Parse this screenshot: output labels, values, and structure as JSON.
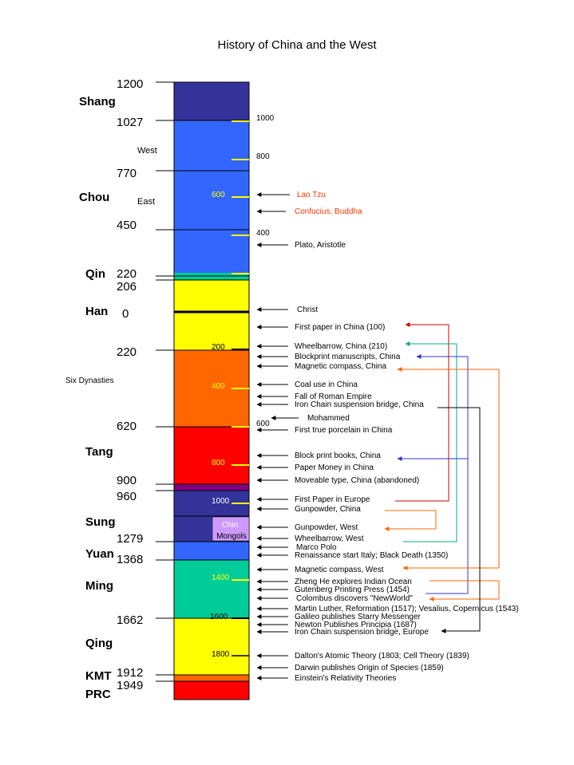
{
  "title": "History of China and the West",
  "dynasties": [
    {
      "name": "Shang",
      "start": "1200",
      "color": "#333399"
    },
    {
      "name": "Chou",
      "start": "1027",
      "color": "#3366ff",
      "subperiods": [
        {
          "name": "West"
        },
        {
          "name": "East",
          "start": "770"
        }
      ],
      "mid_year": "450"
    },
    {
      "name": "Qin",
      "start": "220",
      "color": "#00cc99"
    },
    {
      "name": "Han",
      "start": "206",
      "color": "#ffff00",
      "mid_year": "0"
    },
    {
      "name": "Six Dynasties",
      "start": "220",
      "color": "#ff6600"
    },
    {
      "name": "Tang",
      "start": "620",
      "color": "#ff0000"
    },
    {
      "name": "",
      "start": "900",
      "color": "#800080"
    },
    {
      "name": "Sung",
      "start": "960",
      "color": "#333399"
    },
    {
      "name": "Yuan",
      "start": "1279",
      "color": "#3366ff"
    },
    {
      "name": "Ming",
      "start": "1368",
      "color": "#00cc99"
    },
    {
      "name": "Qing",
      "start": "1662",
      "color": "#ffff00"
    },
    {
      "name": "KMT",
      "start": "1912",
      "color": "#ff6600"
    },
    {
      "name": "PRC",
      "start": "1949",
      "color": "#ff0000"
    }
  ],
  "overlay_box": {
    "line1": "Chin",
    "line2": "Mongols",
    "color": "#cc99ff"
  },
  "century_marks": [
    "1000",
    "800",
    "600",
    "400",
    "200",
    "400",
    "600",
    "800",
    "1000",
    "1400",
    "1600",
    "1800"
  ],
  "events": [
    {
      "text": "Lao Tzu",
      "color": "#ff3300"
    },
    {
      "text": "Confucius, Buddha",
      "color": "#ff3300"
    },
    {
      "text": "Plato, Aristotle"
    },
    {
      "text": "Christ"
    },
    {
      "text": "First paper in China (100)"
    },
    {
      "text": "Wheelbarrow, China (210)"
    },
    {
      "text": "Blockprint manuscripts, China"
    },
    {
      "text": "Magnetic compass, China"
    },
    {
      "text": "Coal use in China"
    },
    {
      "text": "Fall of Roman Empire"
    },
    {
      "text": "Iron Chain suspension bridge, China"
    },
    {
      "text": "Mohammed"
    },
    {
      "text": "First true porcelain in China"
    },
    {
      "text": "Block print books, China"
    },
    {
      "text": "Paper Money in China"
    },
    {
      "text": "Moveable type, China (abandoned)"
    },
    {
      "text": "First Paper in Europe"
    },
    {
      "text": "Gunpowder,  China"
    },
    {
      "text": "Gunpowder, West"
    },
    {
      "text": "Wheelbarrow, West"
    },
    {
      "text": "Marco Polo"
    },
    {
      "text": "Renaissance start Italy; Black Death (1350)"
    },
    {
      "text": "Magnetic compass, West"
    },
    {
      "text": "Zheng He explores Indian Ocean"
    },
    {
      "text": "Gutenberg Printing Press (1454)"
    },
    {
      "text": "Colombus discovers \"NewWorld\""
    },
    {
      "text": "Martin Luther, Reformation (1517); Vesalius, Copernicus (1543)"
    },
    {
      "text": "Galileo publishes Starry Messenger"
    },
    {
      "text": "Newton Publishes Principia (1687)"
    },
    {
      "text": "Iron Chain suspension bridge, Europe"
    },
    {
      "text": "Dalton's Atomic Theory (1803; Cell Theory (1839)"
    },
    {
      "text": "Darwin publishes Origin of Species (1859)"
    },
    {
      "text": "Einstein's Relativity Theories"
    }
  ],
  "connector_colors": {
    "paper": "#cc0000",
    "wheelbarrow": "#00aa88",
    "blockprint": "#3333cc",
    "compass": "#ff6600",
    "bridge": "#000000",
    "gunpowder": "#ff6600"
  }
}
